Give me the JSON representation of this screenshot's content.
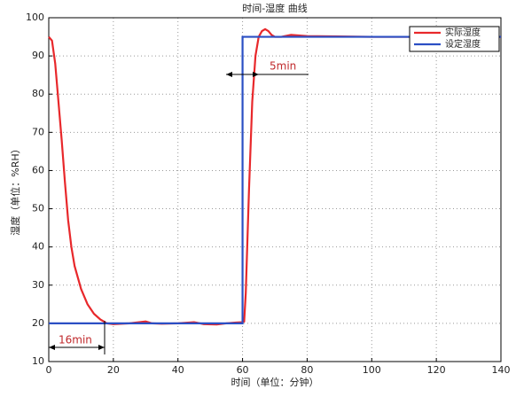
{
  "chart_data": {
    "type": "line",
    "title": "时间-湿度 曲线",
    "x_label": "时间（单位：分钟）",
    "y_label": "湿度（单位：%RH）",
    "series": [
      {
        "name": "实际湿度",
        "color": "#e8282b",
        "x": [
          0,
          1,
          2,
          3,
          4,
          5,
          6,
          7,
          8,
          10,
          12,
          14,
          16,
          17,
          18,
          20,
          25,
          30,
          32,
          35,
          40,
          45,
          48,
          52,
          55,
          58,
          60,
          60.5,
          61,
          62,
          63,
          64,
          65,
          66,
          67,
          68,
          69,
          70,
          72,
          75,
          80,
          100,
          140
        ],
        "values": [
          95,
          94,
          88,
          78,
          68,
          57,
          47,
          40,
          35,
          29,
          25,
          22.5,
          21,
          20.5,
          20,
          19.8,
          20,
          20.5,
          20,
          19.9,
          20,
          20.3,
          19.8,
          19.7,
          20,
          20.2,
          20.3,
          20.5,
          28,
          55,
          78,
          90,
          95,
          96.5,
          97,
          96.5,
          95.5,
          95,
          95,
          95.5,
          95.2,
          95,
          95
        ]
      },
      {
        "name": "设定湿度",
        "color": "#2b4fc4",
        "x": [
          0,
          60,
          60,
          140
        ],
        "values": [
          20,
          20,
          95,
          95
        ]
      }
    ],
    "annotations": [
      "5min",
      "16min"
    ],
    "xlim": [
      0,
      140
    ],
    "xticks": [
      0,
      20,
      40,
      60,
      80,
      100,
      120,
      140
    ],
    "ylim": [
      10,
      100
    ],
    "yticks": [
      10,
      20,
      30,
      40,
      50,
      60,
      70,
      80,
      90,
      100
    ],
    "grid": true,
    "legend": "upper right"
  }
}
